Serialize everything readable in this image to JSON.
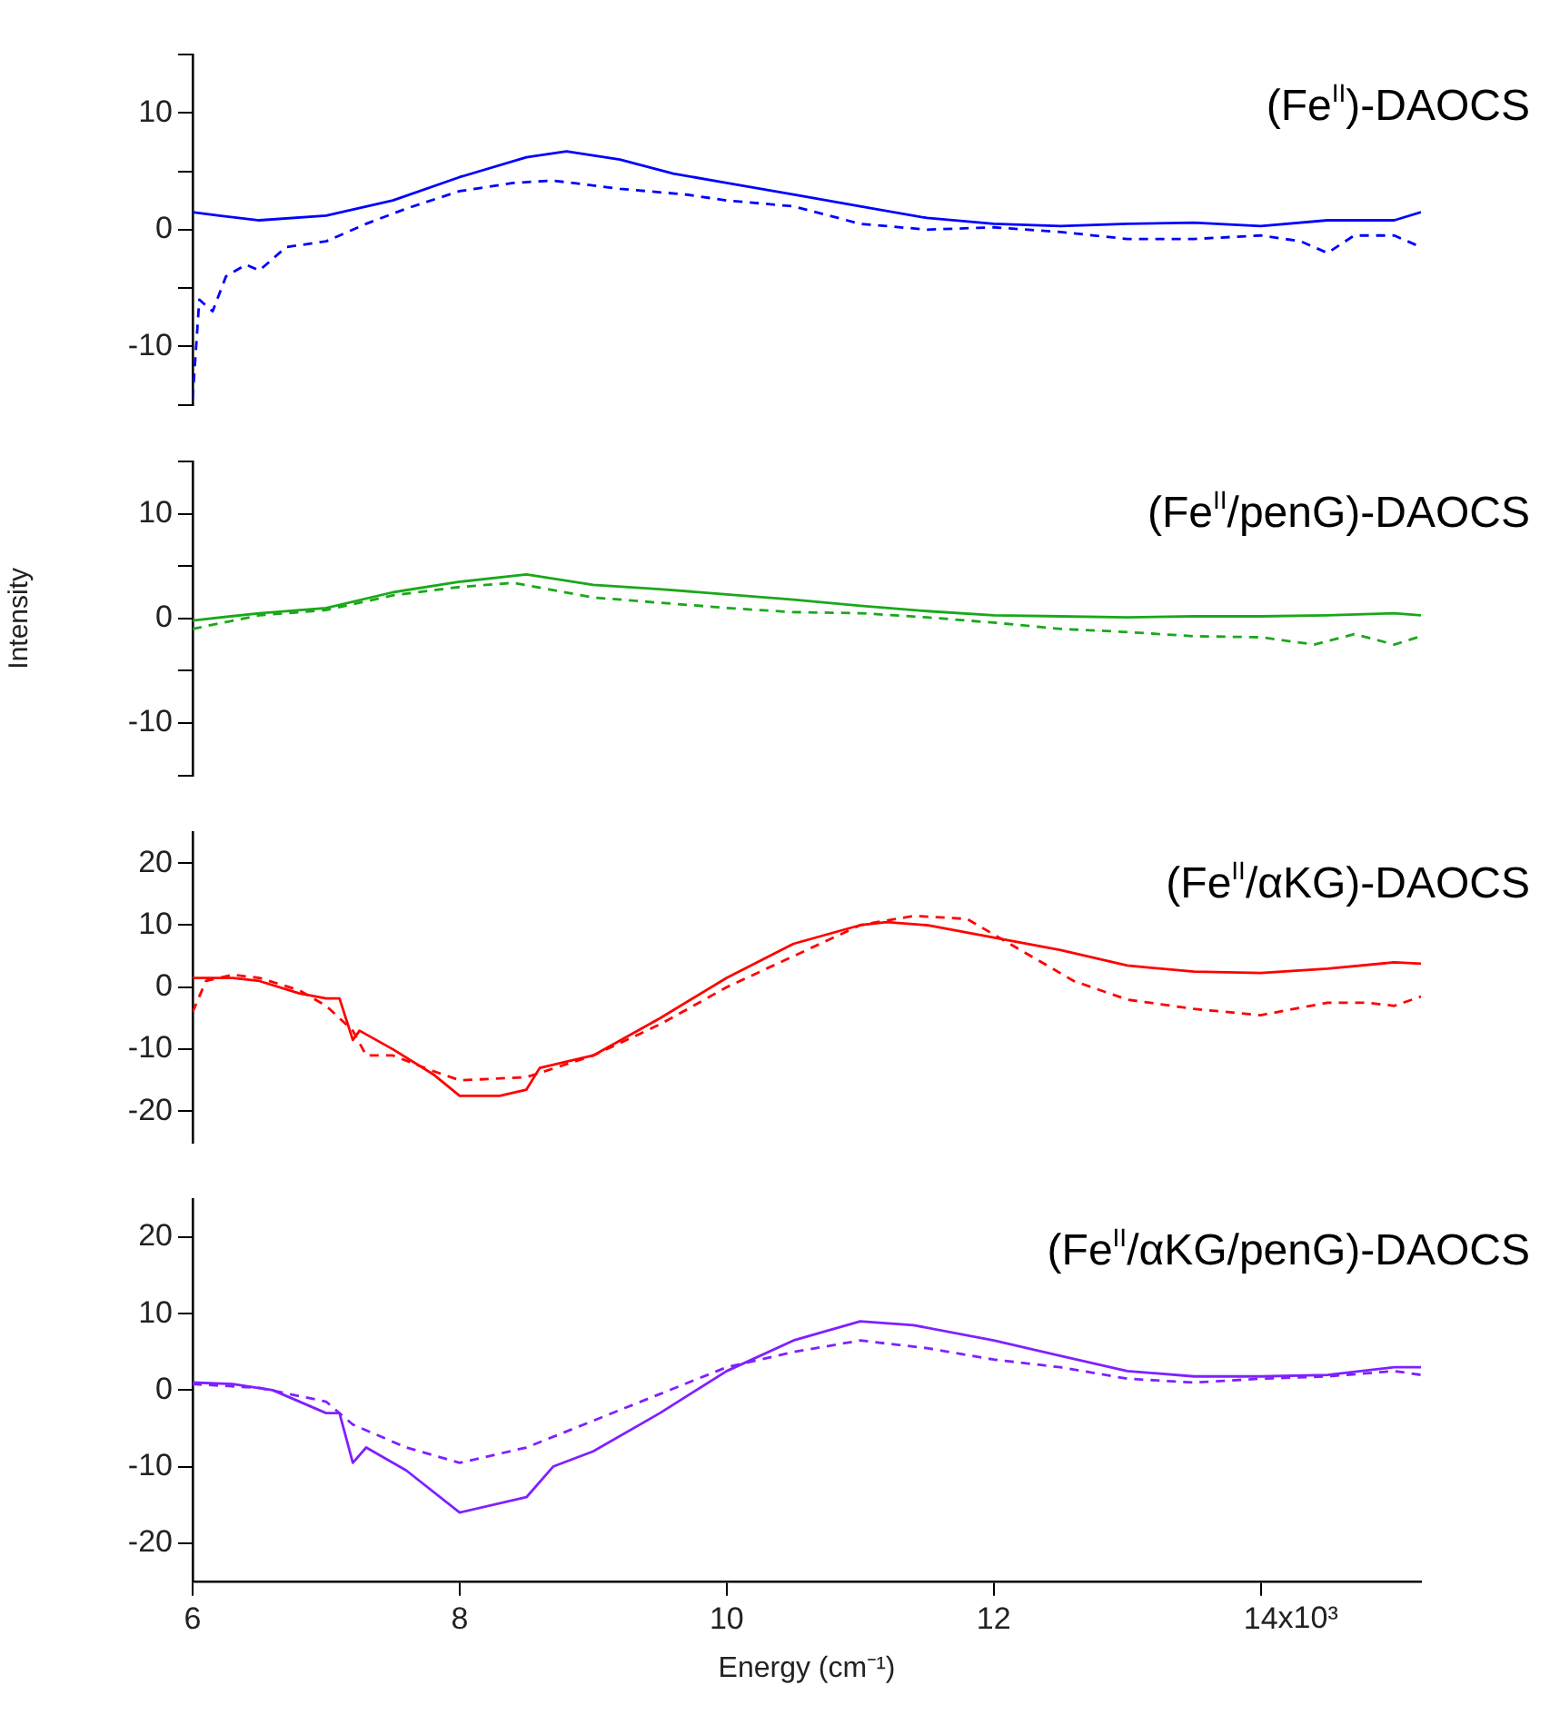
{
  "chart_data": [
    {
      "type": "line",
      "title": "(Fe$^{II}$)-DAOCS",
      "xticks": [
        6,
        8,
        10,
        12,
        14
      ],
      "ylim": [
        -15,
        15
      ],
      "yticks": [
        {
          "value": -15,
          "label": null
        },
        -10,
        {
          "value": -5,
          "label": null
        },
        0,
        {
          "value": 5,
          "label": null
        },
        10,
        {
          "value": 15,
          "label": null
        }
      ],
      "tick_labels": "y",
      "marker": "none",
      "series": [
        {
          "color": "#0000ff",
          "line_style": "solid",
          "x": [
            6,
            6.2,
            6.5,
            7,
            7.5,
            8,
            8.5,
            8.8,
            9.2,
            9.6,
            10,
            10.5,
            11,
            11.5,
            12,
            12.5,
            13,
            13.5,
            14,
            14.5,
            15,
            15.2
          ],
          "values": [
            1.5,
            1.2,
            0.8,
            1.2,
            2.5,
            4.5,
            6.2,
            6.7,
            6,
            4.8,
            4,
            3,
            2,
            1,
            0.5,
            0.3,
            0.5,
            0.6,
            0.3,
            0.8,
            0.8,
            1.5
          ]
        },
        {
          "color": "#0000ff",
          "line_style": "dashed",
          "x": [
            6,
            6.05,
            6.15,
            6.25,
            6.4,
            6.5,
            6.7,
            7,
            7.3,
            7.6,
            8,
            8.4,
            8.7,
            9.2,
            9.7,
            10,
            10.5,
            11,
            11.5,
            12,
            12.5,
            13,
            13.5,
            14,
            14.3,
            14.5,
            14.7,
            15,
            15.2
          ],
          "values": [
            -14.5,
            -6,
            -7,
            -4,
            -3,
            -3.5,
            -1.5,
            -1,
            0.5,
            1.8,
            3.3,
            4,
            4.2,
            3.5,
            3,
            2.5,
            2,
            0.5,
            0,
            0.2,
            -0.2,
            -0.8,
            -0.8,
            -0.5,
            -1,
            -2,
            -0.5,
            -0.5,
            -1.5
          ]
        }
      ]
    },
    {
      "type": "line",
      "title": "(Fe$^{II}$/penG)-DAOCS",
      "ylabel": "Intensity",
      "xticks": [
        6,
        8,
        10,
        12,
        14
      ],
      "ylim": [
        -15,
        15
      ],
      "yticks": [
        {
          "value": -15,
          "label": null
        },
        -10,
        {
          "value": -5,
          "label": null
        },
        0,
        {
          "value": 5,
          "label": null
        },
        10,
        {
          "value": 15,
          "label": null
        }
      ],
      "tick_labels": "y",
      "marker": "none",
      "series": [
        {
          "color": "#1aa81a",
          "line_style": "solid",
          "x": [
            6,
            6.5,
            7,
            7.5,
            8,
            8.5,
            9,
            9.5,
            10,
            10.5,
            11,
            11.5,
            12,
            12.5,
            13,
            13.5,
            14,
            14.5,
            15,
            15.2
          ],
          "values": [
            -0.2,
            0.5,
            1,
            2.5,
            3.5,
            4.2,
            3.2,
            2.8,
            2.3,
            1.8,
            1.2,
            0.7,
            0.3,
            0.2,
            0.1,
            0.2,
            0.2,
            0.3,
            0.5,
            0.3
          ]
        },
        {
          "color": "#1aa81a",
          "line_style": "dashed",
          "x": [
            6,
            6.5,
            7,
            7.5,
            8,
            8.4,
            9,
            9.5,
            10,
            10.5,
            11,
            11.5,
            12,
            12.5,
            13,
            13.5,
            14,
            14.4,
            14.7,
            15,
            15.2
          ],
          "values": [
            -1,
            0.3,
            0.8,
            2.2,
            3,
            3.4,
            2,
            1.5,
            1,
            0.6,
            0.5,
            0.1,
            -0.4,
            -1,
            -1.3,
            -1.7,
            -1.8,
            -2.5,
            -1.5,
            -2.5,
            -1.7
          ]
        }
      ]
    },
    {
      "type": "line",
      "title": "(Fe$^{II}$/αKG)-DAOCS",
      "xticks": [
        6,
        8,
        10,
        12,
        14
      ],
      "ylim": [
        -25,
        25
      ],
      "yticks": [
        -20,
        -10,
        0,
        10,
        20
      ],
      "tick_labels": "y",
      "marker": "none",
      "series": [
        {
          "color": "#ff0000",
          "line_style": "solid",
          "x": [
            6,
            6.3,
            6.5,
            6.8,
            7,
            7.1,
            7.2,
            7.25,
            7.5,
            7.8,
            8,
            8.3,
            8.5,
            8.6,
            9,
            9.5,
            10,
            10.5,
            11,
            11.2,
            11.5,
            12,
            12.5,
            13,
            13.5,
            14,
            14.5,
            15,
            15.2
          ],
          "values": [
            1.5,
            1.5,
            1,
            -1,
            -1.8,
            -1.8,
            -8.5,
            -7,
            -10,
            -14,
            -17.5,
            -17.5,
            -16.5,
            -13,
            -11,
            -5,
            1.5,
            7,
            10,
            10.5,
            10,
            8,
            6,
            3.5,
            2.5,
            2.3,
            3,
            4,
            3.8
          ]
        },
        {
          "color": "#ff0000",
          "line_style": "dashed",
          "x": [
            6,
            6.1,
            6.3,
            6.5,
            6.8,
            7,
            7.2,
            7.3,
            7.5,
            7.8,
            8,
            8.5,
            9,
            9.5,
            10,
            10.5,
            11,
            11.4,
            11.8,
            12.2,
            12.6,
            13,
            13.5,
            14,
            14.5,
            14.8,
            15,
            15.2
          ],
          "values": [
            -4,
            1,
            2,
            1.5,
            -0.5,
            -3,
            -7,
            -11,
            -11,
            -13.5,
            -15,
            -14.5,
            -11,
            -6,
            0,
            5,
            10,
            11.5,
            11,
            6,
            1,
            -2,
            -3.5,
            -4.5,
            -2.5,
            -2.5,
            -3,
            -1.5
          ]
        }
      ]
    },
    {
      "type": "line",
      "title": "(Fe$^{II}$/αKG/penG)-DAOCS",
      "xlabel": "Energy (cm⁻¹)",
      "annotations": [
        "x10³"
      ],
      "xlim": [
        6,
        15.2
      ],
      "xticks": [
        6,
        8,
        10,
        12,
        14
      ],
      "ylim": [
        -25,
        25
      ],
      "yticks": [
        -20,
        -10,
        0,
        10,
        20
      ],
      "marker": "none",
      "series": [
        {
          "color": "#8020ff",
          "line_style": "solid",
          "x": [
            6,
            6.3,
            6.6,
            7,
            7.1,
            7.2,
            7.3,
            7.6,
            8,
            8.5,
            8.7,
            9,
            9.5,
            10,
            10.5,
            11,
            11.4,
            12,
            12.5,
            13,
            13.5,
            14,
            14.5,
            15,
            15.2
          ],
          "values": [
            1,
            0.8,
            0,
            -3,
            -3,
            -9.5,
            -7.5,
            -10.5,
            -16,
            -14,
            -10,
            -8,
            -3,
            2.5,
            6.5,
            9,
            8.5,
            6.5,
            4.5,
            2.5,
            1.8,
            1.8,
            2,
            3,
            3
          ]
        },
        {
          "color": "#8020ff",
          "line_style": "dashed",
          "x": [
            6,
            6.5,
            7,
            7.2,
            7.6,
            8,
            8.5,
            9,
            9.5,
            10,
            10.5,
            11,
            11.5,
            12,
            12.5,
            13,
            13.5,
            14,
            14.5,
            15,
            15.2
          ],
          "values": [
            0.8,
            0.3,
            -1.5,
            -4.5,
            -7.5,
            -9.5,
            -7.5,
            -4,
            -0.5,
            3,
            5,
            6.5,
            5.5,
            4,
            3,
            1.5,
            1,
            1.5,
            1.8,
            2.5,
            2
          ]
        }
      ]
    }
  ]
}
